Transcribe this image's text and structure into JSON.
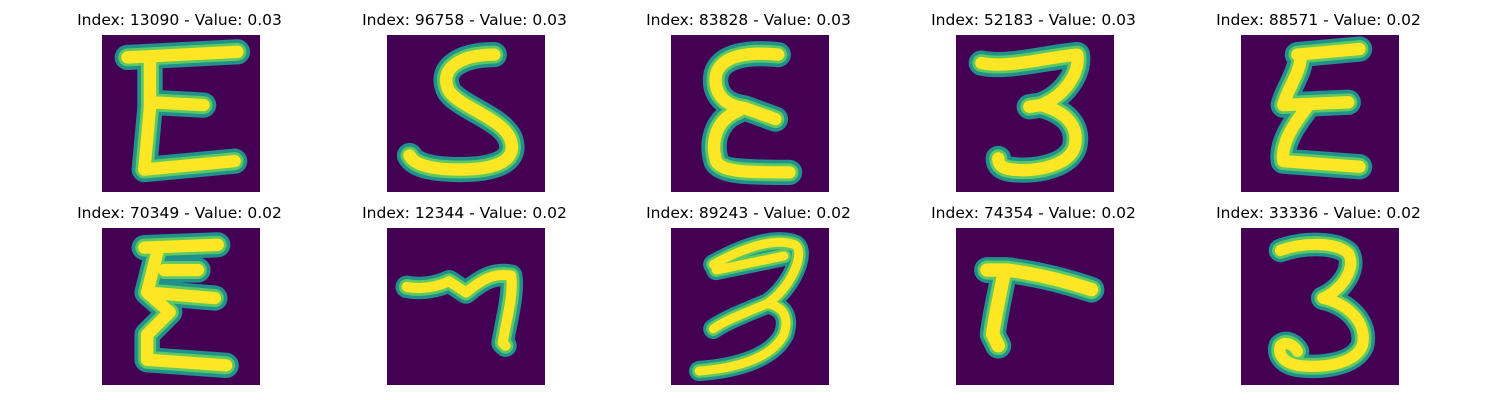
{
  "colors": {
    "background": "#440154",
    "stroke_outer": "#21918c",
    "stroke_mid": "#5ec962",
    "stroke_core": "#fde725"
  },
  "panels": [
    {
      "title": "Index: 13090 - Value: 0.03",
      "glyph": "E-like handwritten digit"
    },
    {
      "title": "Index: 96758 - Value: 0.03",
      "glyph": "S-like handwritten digit"
    },
    {
      "title": "Index: 83828 - Value: 0.03",
      "glyph": "E-like handwritten digit"
    },
    {
      "title": "Index: 52183 - Value: 0.03",
      "glyph": "3-like handwritten digit"
    },
    {
      "title": "Index: 88571 - Value: 0.02",
      "glyph": "E-like handwritten digit"
    },
    {
      "title": "Index: 70349 - Value: 0.02",
      "glyph": "E-like handwritten digit"
    },
    {
      "title": "Index: 12344 - Value: 0.02",
      "glyph": "7-like handwritten digit"
    },
    {
      "title": "Index: 89243 - Value: 0.02",
      "glyph": "3-like handwritten digit"
    },
    {
      "title": "Index: 74354 - Value: 0.02",
      "glyph": "L-like handwritten digit"
    },
    {
      "title": "Index: 33336 - Value: 0.02",
      "glyph": "3-like handwritten digit"
    }
  ]
}
